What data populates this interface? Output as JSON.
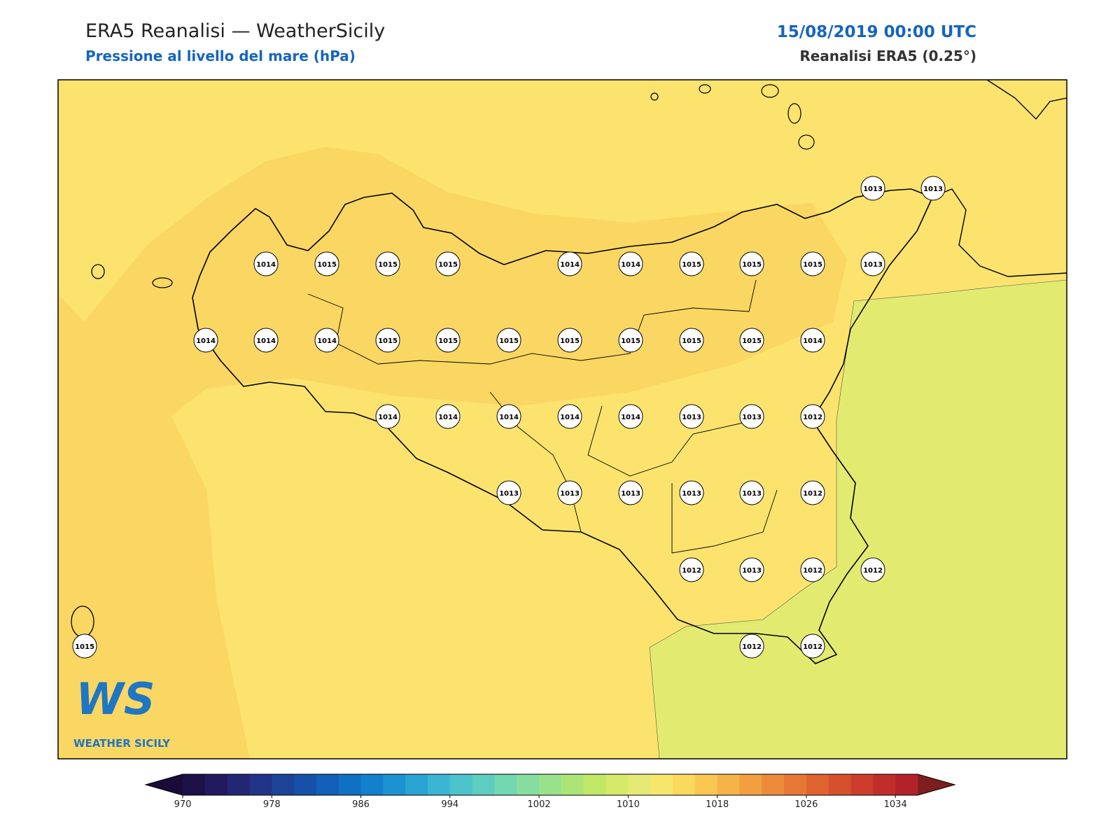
{
  "header": {
    "title": "ERA5 Reanalisi — WeatherSicily",
    "subtitle": "Pressione al livello del mare (hPa)",
    "datetime": "15/08/2019 00:00 UTC",
    "source": "Reanalisi ERA5 (0.25°)"
  },
  "stations": [
    1013,
    1013,
    1014,
    1015,
    1015,
    1015,
    1014,
    1014,
    1015,
    1015,
    1015,
    1013,
    1014,
    1014,
    1014,
    1015,
    1015,
    1015,
    1015,
    1015,
    1015,
    1015,
    1014,
    1014,
    1014,
    1014,
    1014,
    1014,
    1013,
    1013,
    1012,
    1013,
    1013,
    1013,
    1013,
    1013,
    1012,
    1012,
    1013,
    1012,
    1012,
    1015,
    1012,
    1012
  ],
  "logo": {
    "text": "WS",
    "caption": "WEATHER SICILY"
  },
  "colorbar": {
    "ticks": [
      970,
      978,
      986,
      994,
      1002,
      1010,
      1018,
      1026,
      1034
    ],
    "colors": [
      "#1d1147",
      "#22195e",
      "#232673",
      "#213487",
      "#1c4398",
      "#1650a8",
      "#1260b8",
      "#0f70c4",
      "#1280cb",
      "#1c92d0",
      "#2aa4d3",
      "#3ab5d2",
      "#4cc2cb",
      "#5ecdc0",
      "#72d6b1",
      "#86dd9f",
      "#99e28b",
      "#ace577",
      "#c1e766",
      "#d6e969",
      "#e5ea74",
      "#f6e76c",
      "#fbd85e",
      "#f9c652",
      "#f5b348",
      "#f19f40",
      "#ec8b39",
      "#e67734",
      "#df6330",
      "#d6502d",
      "#cc3e2b",
      "#c12e2a",
      "#b3222a"
    ],
    "under": "#1a0b3a",
    "over": "#7e1e1e"
  }
}
